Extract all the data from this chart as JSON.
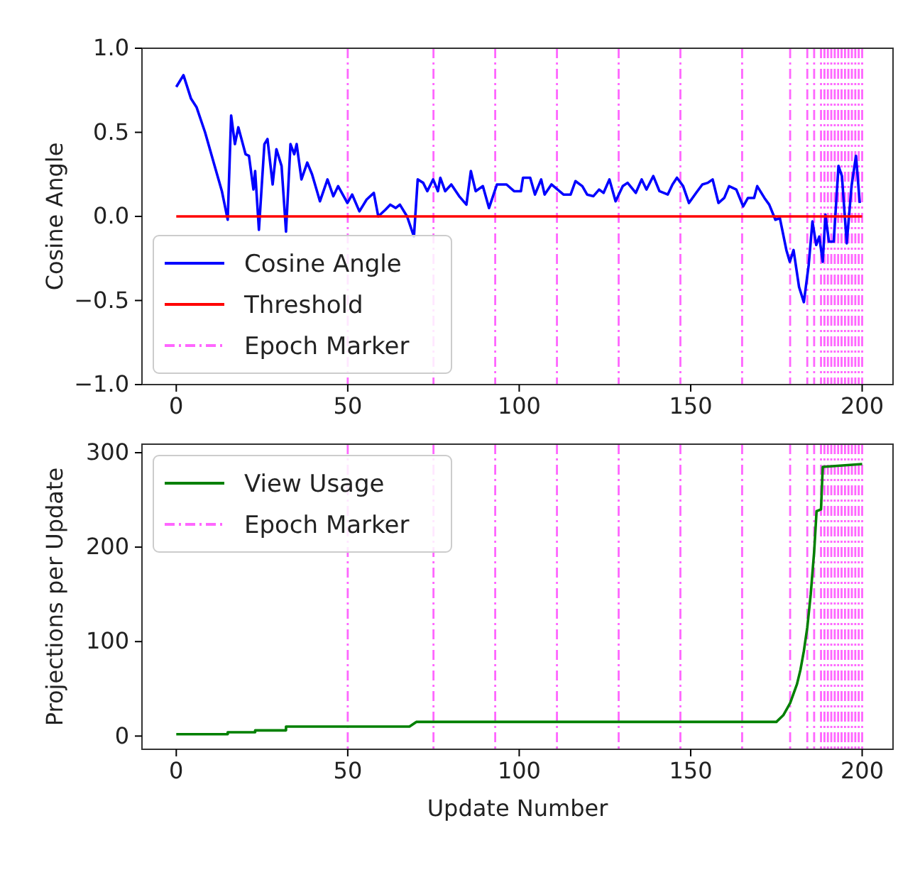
{
  "chart_data": [
    {
      "type": "line",
      "ylabel": "Cosine Angle",
      "xlim": [
        -10,
        209
      ],
      "ylim": [
        -1,
        1
      ],
      "xticks": [
        0,
        50,
        100,
        150,
        200
      ],
      "yticks": [
        {
          "value": -1,
          "label": "−1.0"
        },
        {
          "value": -0.5,
          "label": "−0.5"
        },
        {
          "value": 0,
          "label": "0.0"
        },
        {
          "value": 0.5,
          "label": "0.5"
        },
        {
          "value": 1,
          "label": "1.0"
        }
      ],
      "legend": "bottom left",
      "grid": false,
      "series": [
        {
          "name": "Cosine Angle",
          "color": "#0000ff",
          "x": [
            0,
            2.1,
            4.3,
            5.9,
            8.4,
            11.2,
            13.3,
            15,
            16,
            17.1,
            18.1,
            20.2,
            21.2,
            22.5,
            23,
            24.1,
            25.7,
            26.6,
            28.1,
            29.2,
            30.7,
            32,
            33.3,
            34.4,
            35.1,
            36.5,
            38.2,
            39.6,
            41.9,
            44.1,
            45.8,
            47.2,
            49.9,
            51.3,
            53.4,
            55.5,
            57.6,
            58.9,
            61,
            62.4,
            64,
            65.2,
            67.3,
            69.3,
            70.4,
            72,
            73.2,
            74.9,
            76.3,
            77,
            78.4,
            80.2,
            82.5,
            84.6,
            85.9,
            87.3,
            89.4,
            91.2,
            93.5,
            96.3,
            98.5,
            100.5,
            101.1,
            103.2,
            104.6,
            106.4,
            107.4,
            109.4,
            112.9,
            115,
            116.4,
            118.4,
            119.8,
            121.6,
            123.3,
            124.6,
            126.3,
            128.1,
            130.2,
            131.6,
            134,
            135.7,
            137.1,
            139.1,
            140.9,
            143.3,
            144.7,
            146,
            147.8,
            149.5,
            151.6,
            153.4,
            155,
            156.4,
            158.1,
            159.8,
            161.2,
            163.3,
            165.3,
            166.7,
            168.5,
            169.4,
            171.5,
            172.9,
            174.7,
            176,
            177.9,
            178.9,
            180,
            181.6,
            183,
            184.4,
            185.5,
            186.6,
            187.5,
            188.5,
            189.3,
            190.3,
            191.7,
            193.1,
            194.1,
            195.5,
            196.9,
            198.2,
            199.3
          ],
          "values": [
            0.77,
            0.84,
            0.7,
            0.65,
            0.5,
            0.3,
            0.15,
            -0.02,
            0.6,
            0.43,
            0.53,
            0.37,
            0.36,
            0.16,
            0.27,
            -0.08,
            0.43,
            0.46,
            0.19,
            0.4,
            0.3,
            -0.09,
            0.43,
            0.37,
            0.43,
            0.22,
            0.32,
            0.25,
            0.09,
            0.22,
            0.12,
            0.18,
            0.08,
            0.13,
            0.03,
            0.1,
            0.14,
            0,
            0.04,
            0.07,
            0.05,
            0.07,
            0,
            -0.12,
            0.22,
            0.2,
            0.15,
            0.22,
            0.15,
            0.23,
            0.15,
            0.19,
            0.12,
            0.07,
            0.27,
            0.15,
            0.18,
            0.05,
            0.19,
            0.19,
            0.15,
            0.15,
            0.23,
            0.23,
            0.13,
            0.22,
            0.13,
            0.19,
            0.13,
            0.13,
            0.21,
            0.18,
            0.13,
            0.12,
            0.16,
            0.14,
            0.22,
            0.09,
            0.18,
            0.2,
            0.14,
            0.22,
            0.16,
            0.24,
            0.15,
            0.13,
            0.19,
            0.23,
            0.18,
            0.08,
            0.14,
            0.19,
            0.2,
            0.22,
            0.08,
            0.11,
            0.18,
            0.16,
            0.06,
            0.11,
            0.11,
            0.18,
            0.11,
            0.07,
            -0.02,
            -0.01,
            -0.2,
            -0.27,
            -0.2,
            -0.42,
            -0.51,
            -0.29,
            -0.03,
            -0.17,
            -0.12,
            -0.27,
            0.01,
            -0.15,
            -0.15,
            0.3,
            0.24,
            -0.16,
            0.18,
            0.36,
            0.08
          ]
        },
        {
          "name": "Threshold",
          "color": "#ff0000",
          "x": [
            0,
            200
          ],
          "values": [
            0,
            0
          ]
        }
      ],
      "ref_lines": [
        {
          "axis": "x",
          "value": 50,
          "label": "Epoch Marker",
          "color": "#ff66ff",
          "line_style": "dashed"
        },
        {
          "axis": "x",
          "value": 75,
          "color": "#ff66ff",
          "line_style": "dashed"
        },
        {
          "axis": "x",
          "value": 93,
          "color": "#ff66ff",
          "line_style": "dashed"
        },
        {
          "axis": "x",
          "value": 111,
          "color": "#ff66ff",
          "line_style": "dashed"
        },
        {
          "axis": "x",
          "value": 129,
          "color": "#ff66ff",
          "line_style": "dashed"
        },
        {
          "axis": "x",
          "value": 147,
          "color": "#ff66ff",
          "line_style": "dashed"
        },
        {
          "axis": "x",
          "value": 165,
          "color": "#ff66ff",
          "line_style": "dashed"
        },
        {
          "axis": "x",
          "value": 179,
          "color": "#ff66ff",
          "line_style": "dashed"
        },
        {
          "axis": "x",
          "value": 184,
          "color": "#ff66ff",
          "line_style": "dashed"
        },
        {
          "axis": "x",
          "value": 186,
          "color": "#ff66ff",
          "line_style": "dashed"
        },
        {
          "axis": "x",
          "value": 188,
          "color": "#ff66ff",
          "line_style": "dashed"
        },
        {
          "axis": "x",
          "value": 189,
          "color": "#ff66ff",
          "line_style": "dashed"
        },
        {
          "axis": "x",
          "value": 190,
          "color": "#ff66ff",
          "line_style": "dashed"
        },
        {
          "axis": "x",
          "value": 191,
          "color": "#ff66ff",
          "line_style": "dashed"
        },
        {
          "axis": "x",
          "value": 192,
          "color": "#ff66ff",
          "line_style": "dashed"
        },
        {
          "axis": "x",
          "value": 193,
          "color": "#ff66ff",
          "line_style": "dashed"
        },
        {
          "axis": "x",
          "value": 194,
          "color": "#ff66ff",
          "line_style": "dashed"
        },
        {
          "axis": "x",
          "value": 195,
          "color": "#ff66ff",
          "line_style": "dashed"
        },
        {
          "axis": "x",
          "value": 196,
          "color": "#ff66ff",
          "line_style": "dashed"
        },
        {
          "axis": "x",
          "value": 197,
          "color": "#ff66ff",
          "line_style": "dashed"
        },
        {
          "axis": "x",
          "value": 198,
          "color": "#ff66ff",
          "line_style": "dashed"
        },
        {
          "axis": "x",
          "value": 199,
          "color": "#ff66ff",
          "line_style": "dashed"
        },
        {
          "axis": "x",
          "value": 200,
          "color": "#ff66ff",
          "line_style": "dashed"
        }
      ]
    },
    {
      "type": "line",
      "xlabel": "Update Number",
      "ylabel": "Projections per Update",
      "xlim": [
        -10,
        209
      ],
      "ylim": [
        -14,
        309
      ],
      "xticks": [
        0,
        50,
        100,
        150,
        200
      ],
      "yticks": [
        0,
        100,
        200,
        300
      ],
      "legend": "top left",
      "grid": false,
      "series": [
        {
          "name": "View Usage",
          "color": "#008000",
          "x": [
            0,
            15,
            15,
            23,
            23,
            32,
            32,
            68,
            70,
            175,
            177,
            179,
            181,
            182,
            183,
            184,
            185,
            186,
            186.7,
            188,
            188.5,
            200
          ],
          "values": [
            2,
            2,
            4,
            4,
            6,
            6,
            10,
            10,
            15,
            15,
            22,
            35,
            55,
            70,
            90,
            115,
            150,
            195,
            238,
            240,
            285,
            288
          ]
        }
      ],
      "ref_lines": [
        {
          "axis": "x",
          "value": 50,
          "label": "Epoch Marker",
          "color": "#ff66ff",
          "line_style": "dashed"
        },
        {
          "axis": "x",
          "value": 75,
          "color": "#ff66ff",
          "line_style": "dashed"
        },
        {
          "axis": "x",
          "value": 93,
          "color": "#ff66ff",
          "line_style": "dashed"
        },
        {
          "axis": "x",
          "value": 111,
          "color": "#ff66ff",
          "line_style": "dashed"
        },
        {
          "axis": "x",
          "value": 129,
          "color": "#ff66ff",
          "line_style": "dashed"
        },
        {
          "axis": "x",
          "value": 147,
          "color": "#ff66ff",
          "line_style": "dashed"
        },
        {
          "axis": "x",
          "value": 165,
          "color": "#ff66ff",
          "line_style": "dashed"
        },
        {
          "axis": "x",
          "value": 179,
          "color": "#ff66ff",
          "line_style": "dashed"
        },
        {
          "axis": "x",
          "value": 184,
          "color": "#ff66ff",
          "line_style": "dashed"
        },
        {
          "axis": "x",
          "value": 186,
          "color": "#ff66ff",
          "line_style": "dashed"
        },
        {
          "axis": "x",
          "value": 188,
          "color": "#ff66ff",
          "line_style": "dashed"
        },
        {
          "axis": "x",
          "value": 189,
          "color": "#ff66ff",
          "line_style": "dashed"
        },
        {
          "axis": "x",
          "value": 190,
          "color": "#ff66ff",
          "line_style": "dashed"
        },
        {
          "axis": "x",
          "value": 191,
          "color": "#ff66ff",
          "line_style": "dashed"
        },
        {
          "axis": "x",
          "value": 192,
          "color": "#ff66ff",
          "line_style": "dashed"
        },
        {
          "axis": "x",
          "value": 193,
          "color": "#ff66ff",
          "line_style": "dashed"
        },
        {
          "axis": "x",
          "value": 194,
          "color": "#ff66ff",
          "line_style": "dashed"
        },
        {
          "axis": "x",
          "value": 195,
          "color": "#ff66ff",
          "line_style": "dashed"
        },
        {
          "axis": "x",
          "value": 196,
          "color": "#ff66ff",
          "line_style": "dashed"
        },
        {
          "axis": "x",
          "value": 197,
          "color": "#ff66ff",
          "line_style": "dashed"
        },
        {
          "axis": "x",
          "value": 198,
          "color": "#ff66ff",
          "line_style": "dashed"
        },
        {
          "axis": "x",
          "value": 199,
          "color": "#ff66ff",
          "line_style": "dashed"
        },
        {
          "axis": "x",
          "value": 200,
          "color": "#ff66ff",
          "line_style": "dashed"
        }
      ]
    }
  ]
}
